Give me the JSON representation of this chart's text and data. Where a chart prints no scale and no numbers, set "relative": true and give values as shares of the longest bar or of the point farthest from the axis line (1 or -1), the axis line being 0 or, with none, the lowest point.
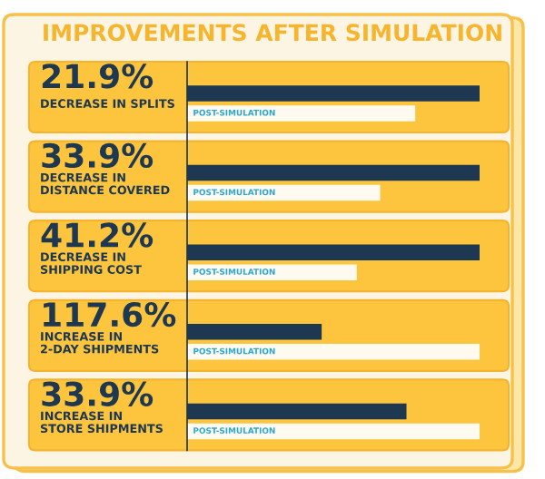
{
  "chart_data": {
    "type": "bar",
    "orientation": "horizontal",
    "relative": true,
    "title": "IMPROVEMENTS AFTER SIMULATION",
    "categories": [
      "DECREASE IN SPLITS",
      "DECREASE IN\nDISTANCE COVERED",
      "DECREASE IN\nSHIPPING COST",
      "INCREASE IN\n2-DAY SHIPMENTS",
      "INCREASE IN\nSTORE SHIPMENTS"
    ],
    "annotations": [
      "21.9%",
      "33.9%",
      "41.2%",
      "117.6%",
      "33.9%"
    ],
    "series": [
      {
        "color": "#1e3851",
        "values": [
          1,
          1,
          1,
          0.46,
          0.75
        ]
      },
      {
        "name": "POST-SIMULATION",
        "color": "#fffaf0",
        "values": [
          0.78,
          0.66,
          0.58,
          1,
          1
        ]
      }
    ],
    "legend": false
  }
}
